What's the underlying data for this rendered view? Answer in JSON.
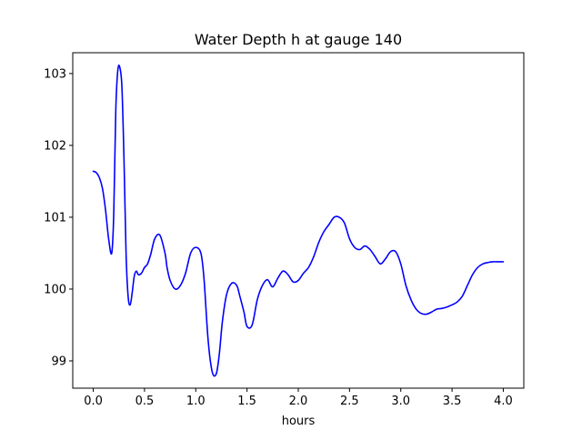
{
  "chart_data": {
    "type": "line",
    "title": "Water Depth h at gauge 140",
    "xlabel": "hours",
    "ylabel": "",
    "xlim": [
      -0.2,
      4.2
    ],
    "ylim": [
      98.62,
      103.29
    ],
    "grid": false,
    "legend": "none",
    "x_ticks": [
      0.0,
      0.5,
      1.0,
      1.5,
      2.0,
      2.5,
      3.0,
      3.5,
      4.0
    ],
    "x_tick_labels": [
      "0.0",
      "0.5",
      "1.0",
      "1.5",
      "2.0",
      "2.5",
      "3.0",
      "3.5",
      "4.0"
    ],
    "y_ticks": [
      99,
      100,
      101,
      102,
      103
    ],
    "y_tick_labels": [
      "99",
      "100",
      "101",
      "102",
      "103"
    ],
    "series": [
      {
        "color": "#0000ff",
        "x": [
          0.0,
          0.03,
          0.06,
          0.09,
          0.12,
          0.15,
          0.18,
          0.2,
          0.22,
          0.24,
          0.26,
          0.28,
          0.3,
          0.32,
          0.34,
          0.36,
          0.38,
          0.4,
          0.42,
          0.44,
          0.47,
          0.5,
          0.53,
          0.56,
          0.6,
          0.65,
          0.7,
          0.72,
          0.75,
          0.8,
          0.85,
          0.9,
          0.95,
          1.0,
          1.05,
          1.08,
          1.12,
          1.16,
          1.2,
          1.23,
          1.26,
          1.3,
          1.35,
          1.4,
          1.43,
          1.47,
          1.5,
          1.55,
          1.6,
          1.65,
          1.7,
          1.75,
          1.8,
          1.85,
          1.9,
          1.95,
          2.0,
          2.05,
          2.1,
          2.15,
          2.2,
          2.25,
          2.3,
          2.35,
          2.4,
          2.45,
          2.5,
          2.55,
          2.6,
          2.65,
          2.7,
          2.75,
          2.8,
          2.85,
          2.9,
          2.95,
          3.0,
          3.05,
          3.1,
          3.15,
          3.2,
          3.25,
          3.3,
          3.35,
          3.4,
          3.45,
          3.5,
          3.55,
          3.6,
          3.65,
          3.7,
          3.75,
          3.8,
          3.85,
          3.9,
          3.95,
          4.0
        ],
        "y": [
          101.64,
          101.62,
          101.55,
          101.4,
          101.1,
          100.7,
          100.5,
          101.05,
          102.5,
          103.05,
          103.08,
          102.8,
          101.8,
          100.5,
          99.9,
          99.78,
          99.95,
          100.18,
          100.25,
          100.2,
          100.22,
          100.3,
          100.35,
          100.48,
          100.7,
          100.75,
          100.5,
          100.3,
          100.12,
          100.0,
          100.05,
          100.22,
          100.5,
          100.58,
          100.5,
          100.15,
          99.3,
          98.85,
          98.82,
          99.1,
          99.55,
          99.92,
          100.08,
          100.05,
          99.9,
          99.68,
          99.48,
          99.5,
          99.85,
          100.05,
          100.13,
          100.03,
          100.15,
          100.25,
          100.2,
          100.1,
          100.12,
          100.22,
          100.3,
          100.45,
          100.65,
          100.8,
          100.9,
          101.0,
          101.0,
          100.92,
          100.7,
          100.58,
          100.55,
          100.6,
          100.55,
          100.45,
          100.35,
          100.42,
          100.52,
          100.52,
          100.35,
          100.05,
          99.85,
          99.72,
          99.66,
          99.65,
          99.68,
          99.72,
          99.73,
          99.75,
          99.78,
          99.82,
          99.9,
          100.05,
          100.2,
          100.3,
          100.35,
          100.37,
          100.38,
          100.38,
          100.38
        ]
      }
    ]
  }
}
